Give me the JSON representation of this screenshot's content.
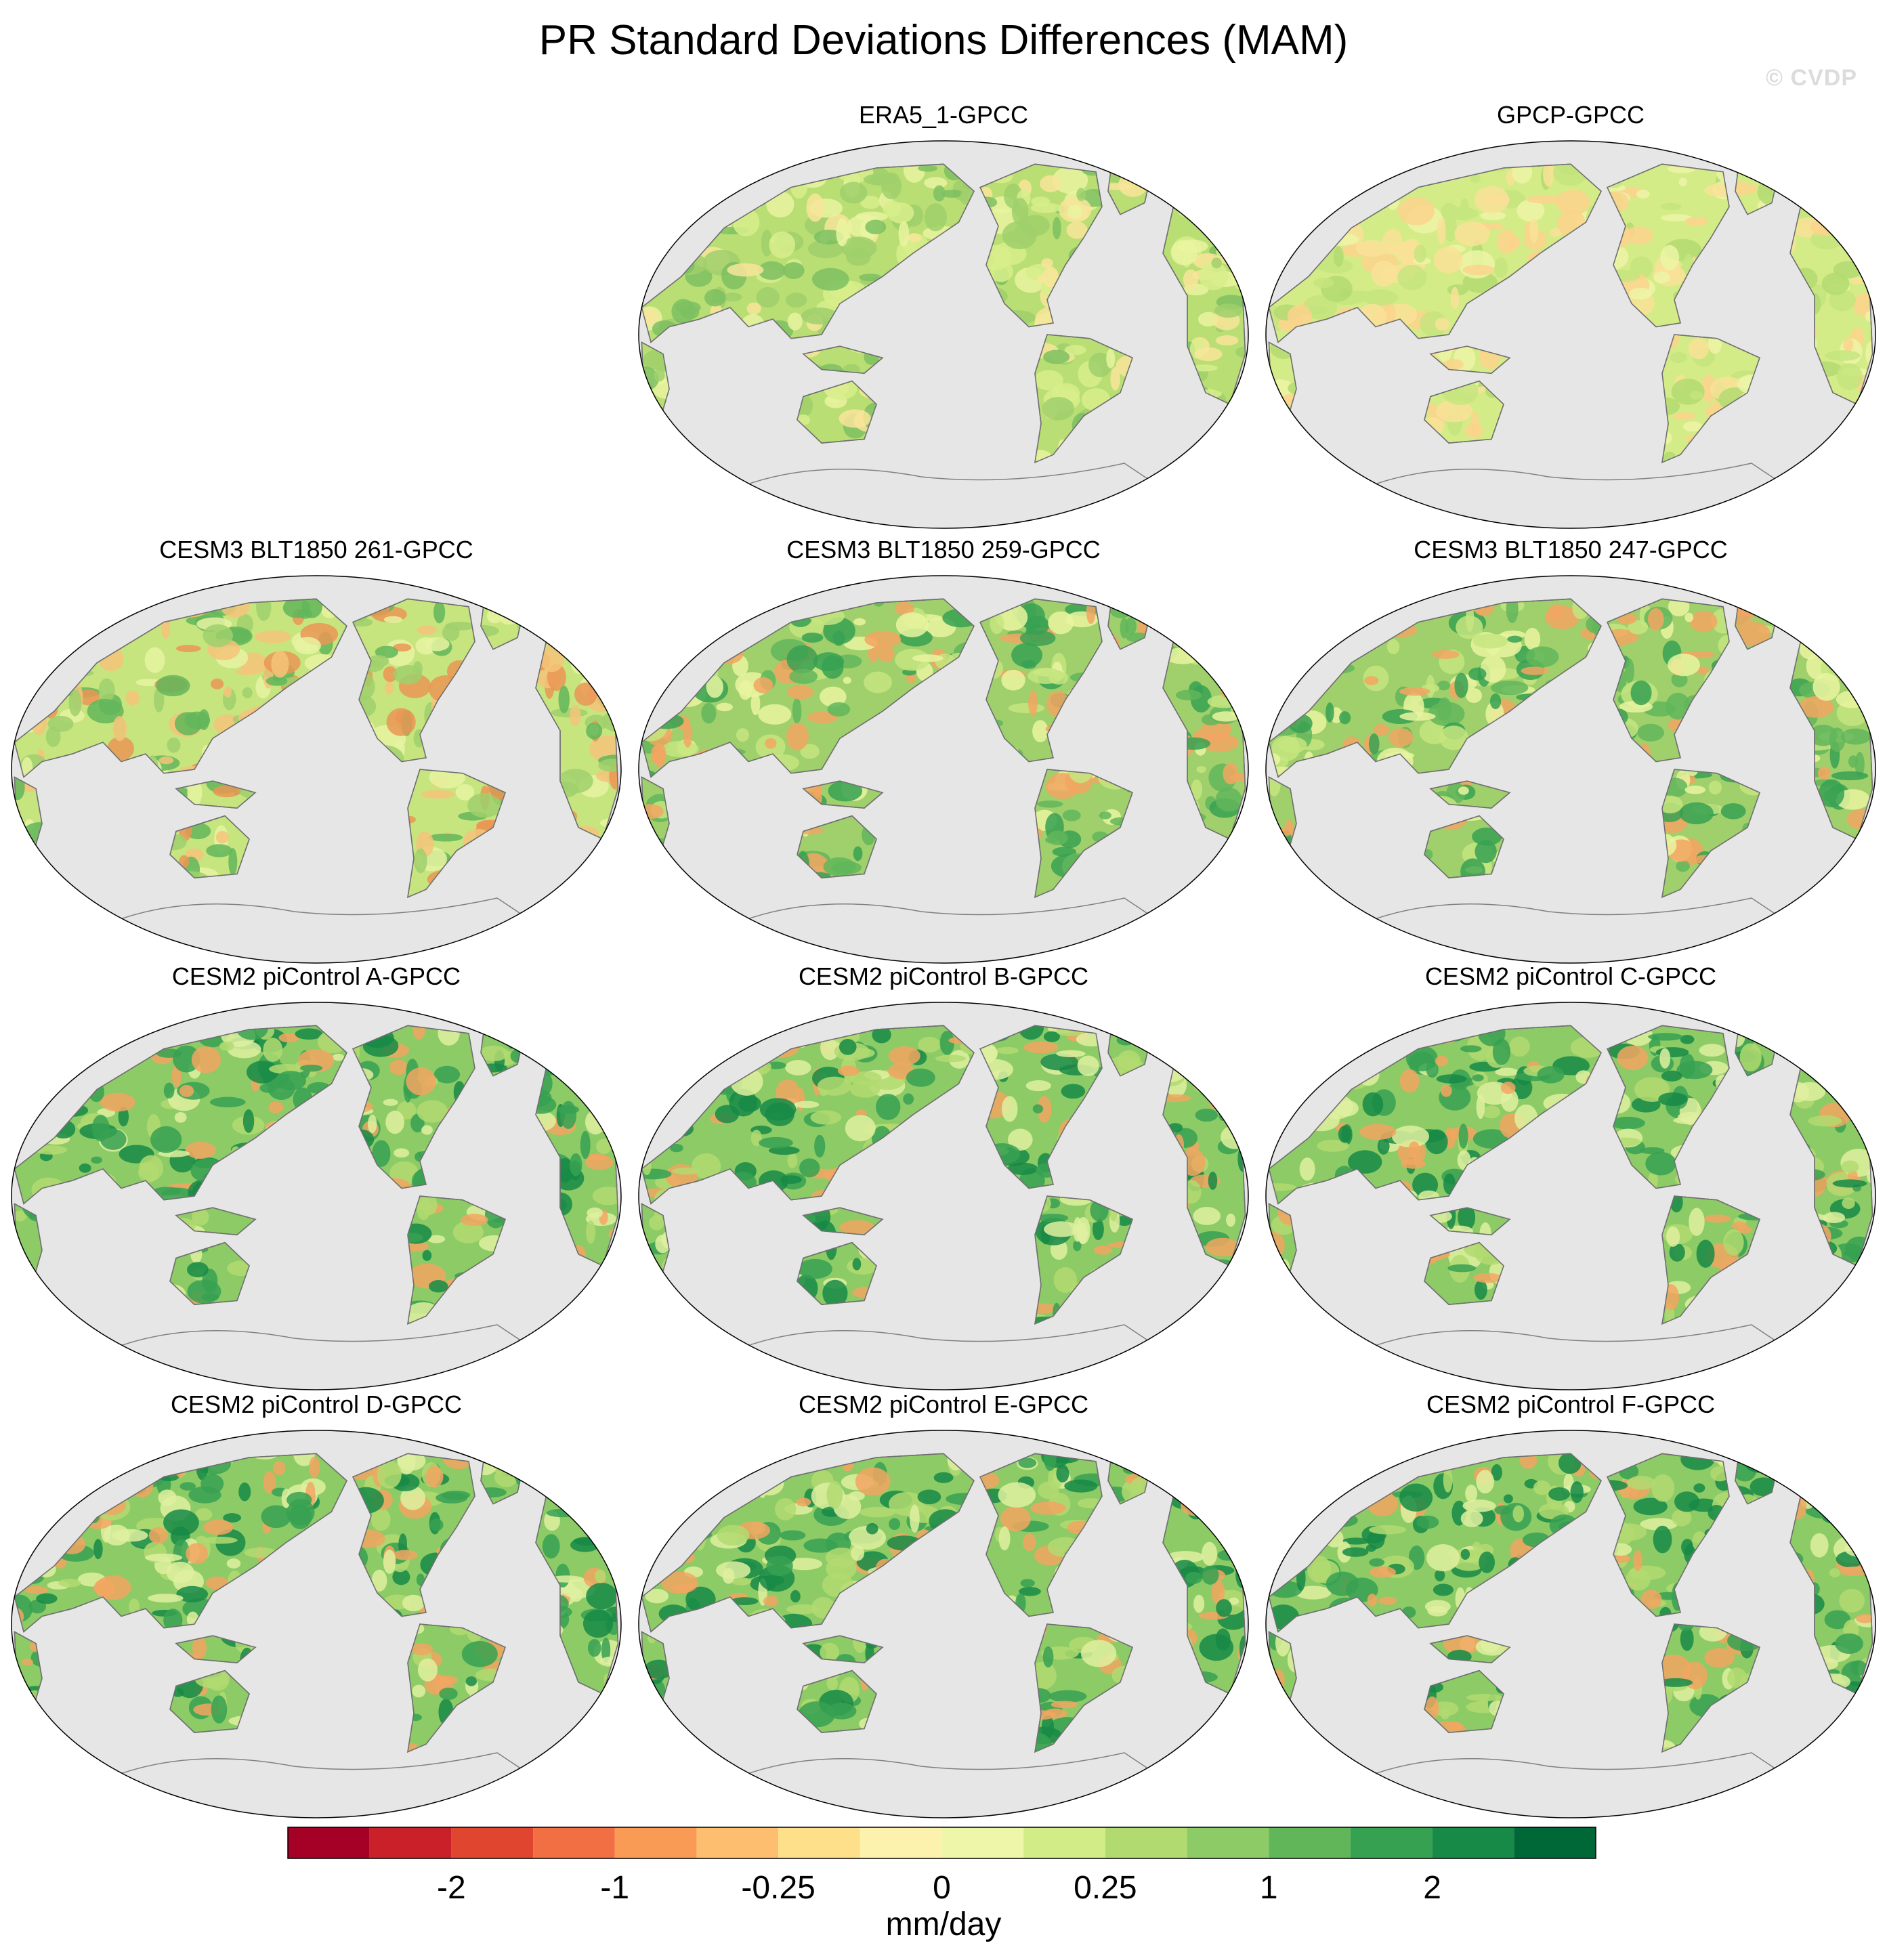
{
  "title": "PR Standard Deviations Differences (MAM)",
  "watermark": "© CVDP",
  "panels": [
    {
      "title": "ERA5_1-GPCC",
      "tone": 1
    },
    {
      "title": "GPCP-GPCC",
      "tone": 2
    },
    {
      "title": "CESM3 BLT1850 261-GPCC",
      "tone": 3
    },
    {
      "title": "CESM3 BLT1850 259-GPCC",
      "tone": 4
    },
    {
      "title": "CESM3 BLT1850 247-GPCC",
      "tone": 4
    },
    {
      "title": "CESM2 piControl A-GPCC",
      "tone": 5
    },
    {
      "title": "CESM2 piControl B-GPCC",
      "tone": 5
    },
    {
      "title": "CESM2 piControl C-GPCC",
      "tone": 5
    },
    {
      "title": "CESM2 piControl D-GPCC",
      "tone": 5
    },
    {
      "title": "CESM2 piControl E-GPCC",
      "tone": 5
    },
    {
      "title": "CESM2 piControl F-GPCC",
      "tone": 5
    }
  ],
  "colorbar": {
    "units": "mm/day",
    "colors": [
      "#a50026",
      "#c9202a",
      "#e0452f",
      "#f26f44",
      "#f99a55",
      "#fdbf6f",
      "#fee08b",
      "#fdf2ad",
      "#edf6a9",
      "#d2ec87",
      "#b1db71",
      "#8ccb66",
      "#62b65a",
      "#37a152",
      "#168a46",
      "#006837"
    ],
    "tick_labels": [
      {
        "label": "-2",
        "boundary": 2
      },
      {
        "label": "-1",
        "boundary": 4
      },
      {
        "label": "-0.25",
        "boundary": 6
      },
      {
        "label": "0",
        "boundary": 8
      },
      {
        "label": "0.25",
        "boundary": 10
      },
      {
        "label": "1",
        "boundary": 12
      },
      {
        "label": "2",
        "boundary": 14
      }
    ]
  }
}
